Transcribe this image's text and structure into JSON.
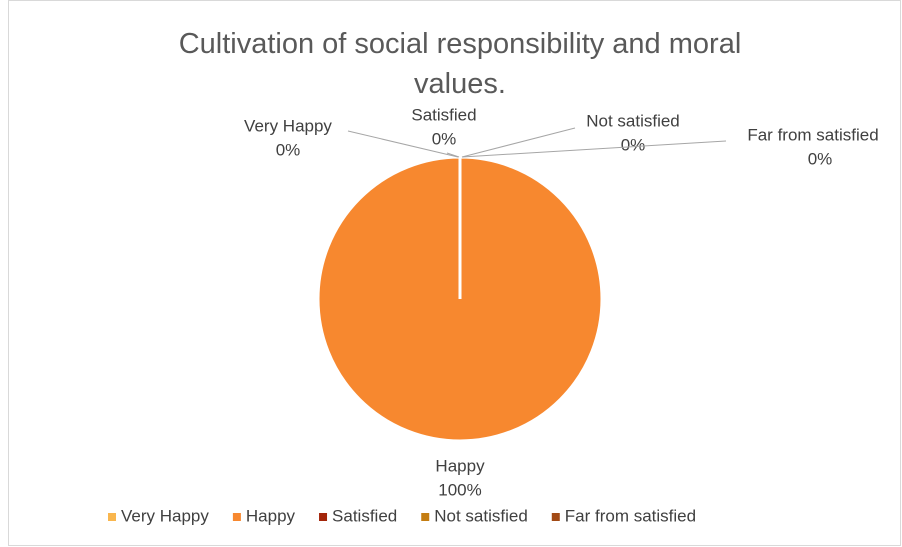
{
  "chart_data": {
    "type": "pie",
    "title": "Cultivation of social responsibility and moral values.",
    "categories": [
      "Very Happy",
      "Happy",
      "Satisfied",
      "Not satisfied",
      "Far from satisfied"
    ],
    "values": [
      0,
      100,
      0,
      0,
      0
    ],
    "value_labels": [
      "0%",
      "100%",
      "0%",
      "0%",
      "0%"
    ],
    "colors": [
      "#f9b64e",
      "#f7882f",
      "#a3250a",
      "#c47d12",
      "#a24a15"
    ],
    "legend": "bottom"
  }
}
